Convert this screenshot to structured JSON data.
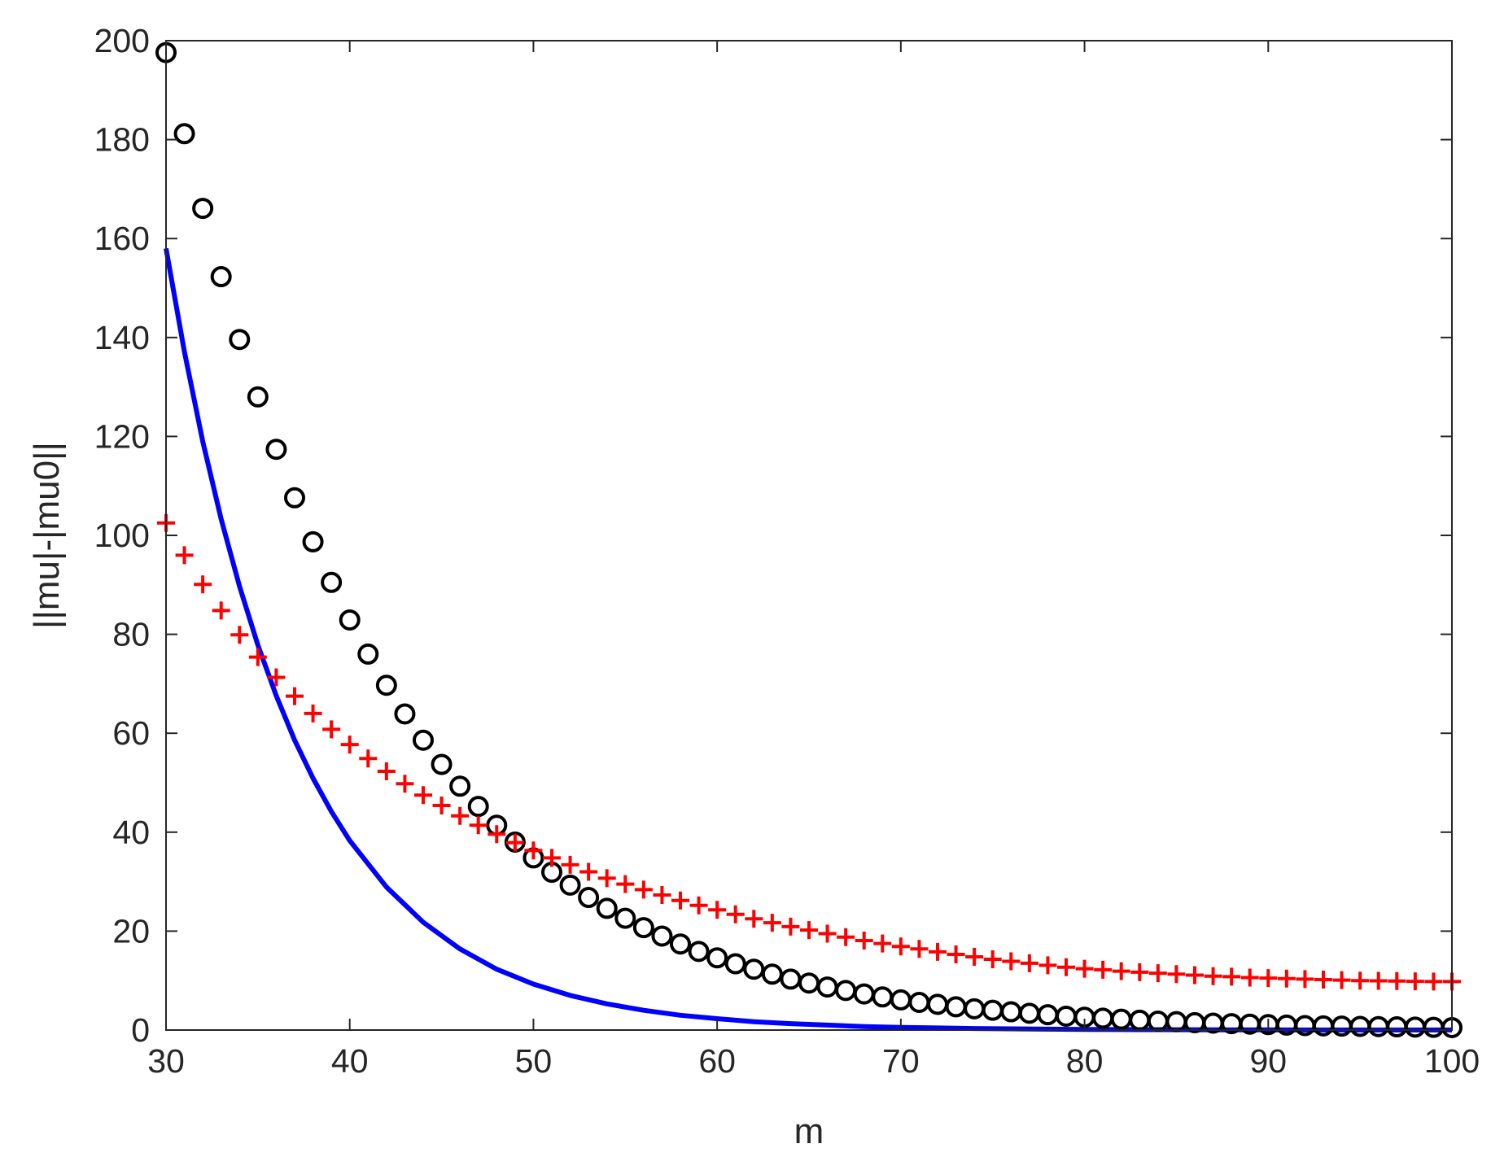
{
  "chart_data": {
    "type": "line",
    "title": "",
    "xlabel": "m",
    "ylabel": "||mu|-|mu0||",
    "xlim": [
      30,
      100
    ],
    "ylim": [
      0,
      200
    ],
    "xticks": [
      30,
      40,
      50,
      60,
      70,
      80,
      90,
      100
    ],
    "yticks": [
      0,
      20,
      40,
      60,
      80,
      100,
      120,
      140,
      160,
      180,
      200
    ],
    "grid": false,
    "legend": "none",
    "series": [
      {
        "style": "line",
        "color": "#0000ff",
        "x": [
          30,
          31,
          32,
          33,
          34,
          35,
          36,
          37,
          38,
          39,
          40,
          42,
          44,
          46,
          48,
          50,
          52,
          54,
          56,
          58,
          60,
          62,
          64,
          66,
          68,
          70,
          72,
          74,
          76,
          78,
          80,
          82,
          84,
          86,
          88,
          90,
          92,
          94,
          96,
          98,
          100
        ],
        "y": [
          158,
          137.1,
          119,
          103.3,
          89.7,
          77.8,
          67.6,
          58.6,
          50.9,
          44.2,
          38.3,
          28.9,
          21.8,
          16.4,
          12.3,
          9.3,
          7.0,
          5.3,
          4.0,
          3.0,
          2.3,
          1.7,
          1.3,
          1.0,
          0.7,
          0.55,
          0.42,
          0.31,
          0.24,
          0.18,
          0.13,
          0.1,
          0.08,
          0.06,
          0.04,
          0.03,
          0.02,
          0.02,
          0.01,
          0.01,
          0.01
        ]
      },
      {
        "style": "marker",
        "marker": "circle",
        "color": "#000000",
        "x": [
          30,
          31,
          32,
          33,
          34,
          35,
          36,
          37,
          38,
          39,
          40,
          41,
          42,
          43,
          44,
          45,
          46,
          47,
          48,
          49,
          50,
          51,
          52,
          53,
          54,
          55,
          56,
          57,
          58,
          59,
          60,
          61,
          62,
          63,
          64,
          65,
          66,
          67,
          68,
          69,
          70,
          71,
          72,
          73,
          74,
          75,
          76,
          77,
          78,
          79,
          80,
          81,
          82,
          83,
          84,
          85,
          86,
          87,
          88,
          89,
          90,
          91,
          92,
          93,
          94,
          95,
          96,
          97,
          98,
          99,
          100
        ],
        "y": [
          197.6,
          181.2,
          166.1,
          152.3,
          139.6,
          128.0,
          117.4,
          107.6,
          98.7,
          90.5,
          82.9,
          76.0,
          69.7,
          63.9,
          58.6,
          53.7,
          49.3,
          45.2,
          41.4,
          38.0,
          34.8,
          31.9,
          29.3,
          26.8,
          24.6,
          22.6,
          20.7,
          19.0,
          17.4,
          15.9,
          14.6,
          13.4,
          12.3,
          11.3,
          10.3,
          9.5,
          8.7,
          8.0,
          7.3,
          6.7,
          6.1,
          5.6,
          5.2,
          4.7,
          4.3,
          4.0,
          3.7,
          3.4,
          3.1,
          2.8,
          2.6,
          2.4,
          2.2,
          2.0,
          1.8,
          1.7,
          1.5,
          1.4,
          1.3,
          1.2,
          1.1,
          1.0,
          0.9,
          0.85,
          0.8,
          0.75,
          0.7,
          0.65,
          0.6,
          0.55,
          0.5
        ]
      },
      {
        "style": "marker",
        "marker": "plus",
        "color": "#ff0000",
        "x": [
          30,
          31,
          32,
          33,
          34,
          35,
          36,
          37,
          38,
          39,
          40,
          41,
          42,
          43,
          44,
          45,
          46,
          47,
          48,
          49,
          50,
          51,
          52,
          53,
          54,
          55,
          56,
          57,
          58,
          59,
          60,
          61,
          62,
          63,
          64,
          65,
          66,
          67,
          68,
          69,
          70,
          71,
          72,
          73,
          74,
          75,
          76,
          77,
          78,
          79,
          80,
          81,
          82,
          83,
          84,
          85,
          86,
          87,
          88,
          89,
          90,
          91,
          92,
          93,
          94,
          95,
          96,
          97,
          98,
          99,
          100
        ],
        "y": [
          102.5,
          96.0,
          90.1,
          84.8,
          79.9,
          75.4,
          71.3,
          67.5,
          64.0,
          60.8,
          57.7,
          54.9,
          52.3,
          49.8,
          47.5,
          45.4,
          43.3,
          41.4,
          39.6,
          37.9,
          36.3,
          34.8,
          33.4,
          32.0,
          30.7,
          29.5,
          28.4,
          27.3,
          26.2,
          25.2,
          24.3,
          23.4,
          22.5,
          21.7,
          20.9,
          20.2,
          19.5,
          18.8,
          18.1,
          17.5,
          16.9,
          16.4,
          15.8,
          15.3,
          14.8,
          14.3,
          13.9,
          13.5,
          13.1,
          12.7,
          12.4,
          12.2,
          11.9,
          11.7,
          11.5,
          11.3,
          11.1,
          10.9,
          10.8,
          10.6,
          10.5,
          10.4,
          10.3,
          10.2,
          10.1,
          10.0,
          9.95,
          9.9,
          9.85,
          9.8,
          9.8
        ]
      }
    ]
  }
}
